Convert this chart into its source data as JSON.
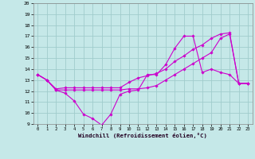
{
  "xlabel": "Windchill (Refroidissement éolien,°C)",
  "bg_color": "#c5e8e8",
  "grid_color": "#a0cccc",
  "line_color": "#cc00cc",
  "xlim": [
    -0.5,
    23.5
  ],
  "ylim": [
    9,
    20
  ],
  "xticks": [
    0,
    1,
    2,
    3,
    4,
    5,
    6,
    7,
    8,
    9,
    10,
    11,
    12,
    13,
    14,
    15,
    16,
    17,
    18,
    19,
    20,
    21,
    22,
    23
  ],
  "yticks": [
    9,
    10,
    11,
    12,
    13,
    14,
    15,
    16,
    17,
    18,
    19,
    20
  ],
  "line1_x": [
    0,
    1,
    2,
    3,
    4,
    5,
    6,
    7,
    8,
    9,
    10,
    11,
    12,
    13,
    14,
    15,
    16,
    17,
    18,
    19,
    20,
    21,
    22,
    23
  ],
  "line1_y": [
    13.5,
    13.0,
    12.1,
    11.8,
    11.1,
    9.9,
    9.5,
    8.9,
    9.9,
    11.7,
    12.0,
    12.1,
    13.5,
    13.5,
    14.4,
    15.9,
    17.0,
    17.0,
    13.7,
    14.0,
    13.7,
    13.5,
    12.7,
    12.7
  ],
  "line2_x": [
    0,
    1,
    2,
    3,
    4,
    5,
    6,
    7,
    8,
    9,
    10,
    11,
    12,
    13,
    14,
    15,
    16,
    17,
    18,
    19,
    20,
    21,
    22,
    23
  ],
  "line2_y": [
    13.5,
    13.0,
    12.2,
    12.3,
    12.3,
    12.3,
    12.3,
    12.3,
    12.3,
    12.3,
    12.8,
    13.2,
    13.4,
    13.6,
    14.0,
    14.7,
    15.2,
    15.8,
    16.2,
    16.8,
    17.2,
    17.3,
    12.7,
    12.7
  ],
  "line3_x": [
    0,
    1,
    2,
    3,
    4,
    5,
    6,
    7,
    8,
    9,
    10,
    11,
    12,
    13,
    14,
    15,
    16,
    17,
    18,
    19,
    20,
    21,
    22,
    23
  ],
  "line3_y": [
    13.5,
    13.0,
    12.1,
    12.1,
    12.1,
    12.1,
    12.1,
    12.1,
    12.1,
    12.1,
    12.2,
    12.2,
    12.3,
    12.5,
    13.0,
    13.5,
    14.0,
    14.5,
    15.0,
    15.5,
    16.8,
    17.2,
    12.7,
    12.7
  ]
}
